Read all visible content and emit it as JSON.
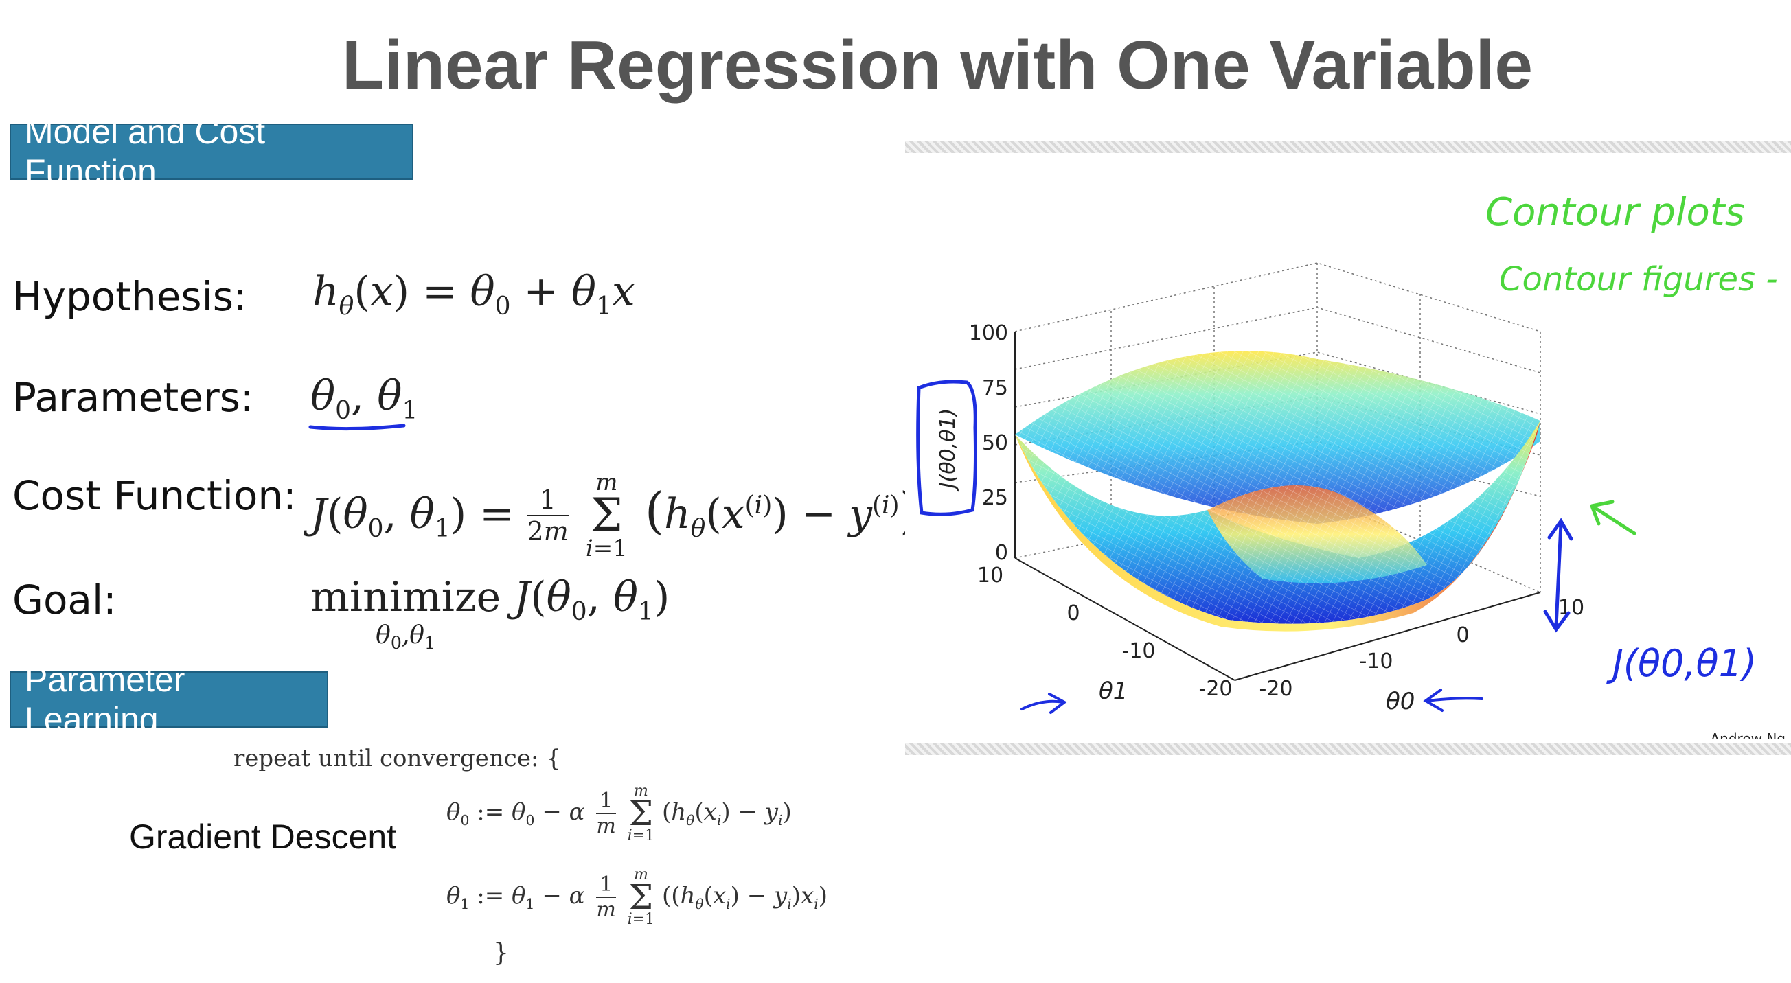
{
  "title": "Linear Regression with One Variable",
  "sections": {
    "model": "Model and Cost Function",
    "learning": "Parameter Learning"
  },
  "rows": {
    "hypothesis": "Hypothesis:",
    "parameters": "Parameters:",
    "cost": "Cost Function:",
    "goal": "Goal:"
  },
  "gradient": {
    "label": "Gradient Descent",
    "repeat": "repeat until convergence: {",
    "close": "}"
  },
  "plot": {
    "zlabel": "J(θ0,θ1)",
    "ticks_z": [
      "100",
      "75",
      "50",
      "25",
      "0"
    ],
    "ticks_t1": [
      "10",
      "0",
      "-10",
      "-20"
    ],
    "ticks_t0": [
      "-20",
      "-10",
      "0",
      "10"
    ],
    "axis_t1": "θ1",
    "axis_t0": "θ0",
    "handwriting_1": "Contour plots",
    "handwriting_2": "Contour figures -",
    "handwriting_3": "J(θ0,θ1)",
    "credit": "Andrew Ng"
  },
  "colors": {
    "section_bg": "#2e7fa6",
    "title": "#555555",
    "handwriting_green": "#4cd63c",
    "handwriting_blue": "#1d2ee0"
  }
}
